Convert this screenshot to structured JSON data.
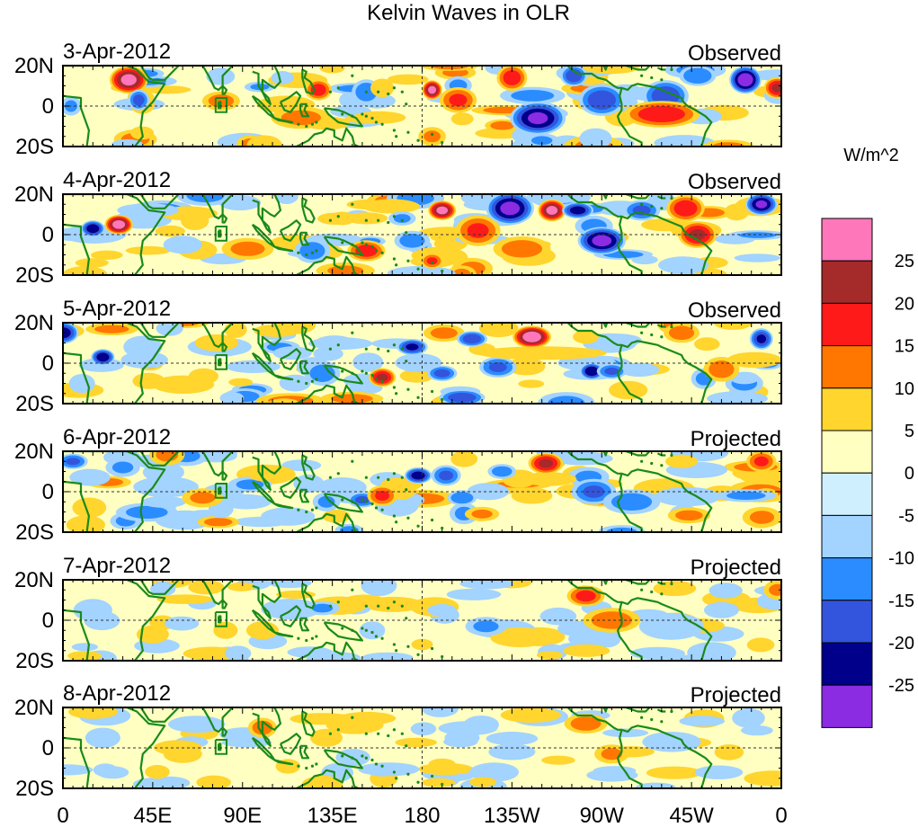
{
  "chart_data": {
    "type": "heatmap",
    "title": "Kelvin Waves in OLR",
    "panels": [
      {
        "date": "3-Apr-2012",
        "status": "Observed"
      },
      {
        "date": "4-Apr-2012",
        "status": "Observed"
      },
      {
        "date": "5-Apr-2012",
        "status": "Observed"
      },
      {
        "date": "6-Apr-2012",
        "status": "Projected"
      },
      {
        "date": "7-Apr-2012",
        "status": "Projected"
      },
      {
        "date": "8-Apr-2012",
        "status": "Projected"
      }
    ],
    "x_ticks": [
      "0",
      "45E",
      "90E",
      "135E",
      "180",
      "135W",
      "90W",
      "45W",
      "0"
    ],
    "x_tick_values": [
      0,
      45,
      90,
      135,
      180,
      225,
      270,
      315,
      360
    ],
    "y_ticks": [
      "20N",
      "0",
      "20S"
    ],
    "y_tick_values": [
      20,
      0,
      -20
    ],
    "xlim": [
      0,
      360
    ],
    "ylim": [
      -20,
      20
    ],
    "colorbar": {
      "unit": "W/m^2",
      "levels": [
        -25,
        -20,
        -15,
        -10,
        -5,
        0,
        5,
        10,
        15,
        20,
        25
      ],
      "labels": [
        "25",
        "20",
        "15",
        "10",
        "5",
        "0",
        "-5",
        "-10",
        "-15",
        "-20",
        "-25"
      ],
      "colors_top_to_bottom": [
        "#ff77bb",
        "#a52a2a",
        "#ff1a1a",
        "#ff7700",
        "#ffd52e",
        "#ffffc2",
        "#cfefff",
        "#a3d3ff",
        "#2b8cff",
        "#3355dd",
        "#00008b",
        "#8b2be2"
      ]
    },
    "coastline_color": "#1a8a1a",
    "anomalies": [
      [
        [
          33,
          13,
          4.8,
          5,
          26
        ],
        [
          38,
          3,
          2.8,
          4,
          -16
        ],
        [
          128,
          8,
          3.5,
          4,
          17
        ],
        [
          152,
          7,
          4,
          5,
          -13
        ],
        [
          160,
          9,
          3.5,
          4,
          9
        ],
        [
          185,
          8,
          2.5,
          3.5,
          26
        ],
        [
          198,
          3,
          5,
          5,
          15
        ],
        [
          225,
          14,
          4,
          5,
          17
        ],
        [
          238,
          -6,
          7,
          6,
          -25
        ],
        [
          256,
          15,
          3.5,
          4,
          -18
        ],
        [
          270,
          3,
          6,
          6,
          -18
        ],
        [
          302,
          5,
          6,
          6,
          -18
        ],
        [
          300,
          -4,
          10,
          5,
          18
        ],
        [
          318,
          15,
          5,
          4,
          -14
        ],
        [
          342,
          13,
          4,
          5,
          -28
        ],
        [
          358,
          9,
          3.5,
          4,
          20
        ],
        [
          4,
          0,
          3,
          4,
          -10
        ],
        [
          110,
          14,
          3.5,
          3,
          -8
        ],
        [
          185,
          -15,
          4,
          4,
          10
        ],
        [
          240,
          -17,
          5,
          3,
          -10
        ]
      ],
      [
        [
          15,
          3,
          3,
          3,
          -23
        ],
        [
          28,
          5,
          3.5,
          3.5,
          27
        ],
        [
          60,
          -5,
          6,
          4,
          -8
        ],
        [
          152,
          -8,
          5,
          4,
          17
        ],
        [
          190,
          12,
          3.5,
          3.5,
          26
        ],
        [
          185,
          -13,
          3,
          3,
          15
        ],
        [
          208,
          2,
          6,
          6,
          15
        ],
        [
          224,
          13,
          6,
          6,
          -26
        ],
        [
          230,
          -7,
          8,
          5,
          12
        ],
        [
          245,
          12,
          3.5,
          4,
          26
        ],
        [
          258,
          12,
          4,
          3,
          -22
        ],
        [
          270,
          -3,
          6,
          5,
          -26
        ],
        [
          290,
          12,
          5,
          4,
          -15
        ],
        [
          312,
          13,
          5,
          5,
          18
        ],
        [
          318,
          0,
          5,
          5,
          20
        ],
        [
          350,
          15,
          4,
          4,
          -25
        ],
        [
          125,
          -8,
          5,
          5,
          -12
        ],
        [
          170,
          8,
          4,
          3,
          -10
        ],
        [
          175,
          -3,
          5,
          4,
          -12
        ],
        [
          140,
          8,
          4,
          3,
          8
        ]
      ],
      [
        [
          0,
          15,
          4,
          4,
          -22
        ],
        [
          20,
          3,
          3,
          3,
          -23
        ],
        [
          40,
          8,
          6,
          5,
          -8
        ],
        [
          130,
          -5,
          5,
          5,
          -12
        ],
        [
          160,
          -7,
          3.5,
          3.5,
          20
        ],
        [
          175,
          8,
          4,
          3,
          -20
        ],
        [
          190,
          -5,
          4,
          3,
          -16
        ],
        [
          205,
          12,
          4,
          3,
          -18
        ],
        [
          218,
          -2,
          5,
          4,
          -15
        ],
        [
          235,
          13,
          4.8,
          4,
          28
        ],
        [
          262,
          13,
          4,
          3,
          8
        ],
        [
          265,
          -4,
          3,
          3,
          -24
        ],
        [
          275,
          -4,
          4,
          3,
          -15
        ],
        [
          310,
          15,
          5,
          4,
          12
        ],
        [
          330,
          -3,
          5,
          5,
          12
        ],
        [
          350,
          12,
          3,
          4,
          -20
        ],
        [
          240,
          5,
          20,
          3,
          8
        ],
        [
          200,
          -17,
          6,
          3,
          -18
        ],
        [
          115,
          5,
          6,
          3,
          -8
        ]
      ],
      [
        [
          5,
          15,
          4,
          3,
          -15
        ],
        [
          30,
          12,
          5,
          4,
          -10
        ],
        [
          70,
          -3,
          6,
          4,
          10
        ],
        [
          132,
          -5,
          4,
          4,
          -10
        ],
        [
          150,
          -4,
          4,
          3,
          -15
        ],
        [
          160,
          -2,
          4,
          4,
          15
        ],
        [
          178,
          8,
          3.5,
          3,
          -22
        ],
        [
          192,
          8,
          4,
          4,
          -15
        ],
        [
          200,
          -3,
          4,
          3,
          -14
        ],
        [
          210,
          -11,
          5,
          3,
          10
        ],
        [
          242,
          14,
          4.5,
          4,
          20
        ],
        [
          235,
          -2,
          7,
          4,
          6
        ],
        [
          266,
          0,
          6,
          5,
          -15
        ],
        [
          285,
          -5,
          8,
          5,
          -12
        ],
        [
          310,
          15,
          5,
          3,
          8
        ],
        [
          350,
          15,
          4,
          4,
          15
        ],
        [
          220,
          10,
          4,
          3,
          -12
        ],
        [
          100,
          8,
          5,
          3,
          5
        ]
      ],
      [
        [
          15,
          5,
          6,
          5,
          -8
        ],
        [
          45,
          -7,
          5,
          4,
          8
        ],
        [
          100,
          -5,
          5,
          4,
          8
        ],
        [
          130,
          6,
          5,
          3,
          -10
        ],
        [
          155,
          -5,
          4,
          4,
          -8
        ],
        [
          190,
          5,
          5,
          3,
          -6
        ],
        [
          212,
          -3,
          6,
          4,
          -10
        ],
        [
          262,
          12,
          5,
          4,
          16
        ],
        [
          275,
          0,
          8,
          5,
          12
        ],
        [
          305,
          -3,
          10,
          6,
          -8
        ],
        [
          330,
          5,
          6,
          4,
          -6
        ],
        [
          358,
          15,
          4,
          4,
          10
        ],
        [
          180,
          -12,
          4,
          3,
          5
        ]
      ],
      [
        [
          20,
          5,
          6,
          5,
          -6
        ],
        [
          60,
          -3,
          6,
          4,
          8
        ],
        [
          100,
          10,
          4,
          4,
          12
        ],
        [
          132,
          5,
          5,
          4,
          8
        ],
        [
          200,
          5,
          6,
          4,
          -6
        ],
        [
          225,
          -2,
          8,
          4,
          -6
        ],
        [
          262,
          12,
          6,
          4,
          12
        ],
        [
          275,
          -3,
          5,
          4,
          10
        ],
        [
          305,
          3,
          10,
          5,
          -6
        ],
        [
          190,
          -8,
          5,
          3,
          5
        ]
      ]
    ]
  }
}
